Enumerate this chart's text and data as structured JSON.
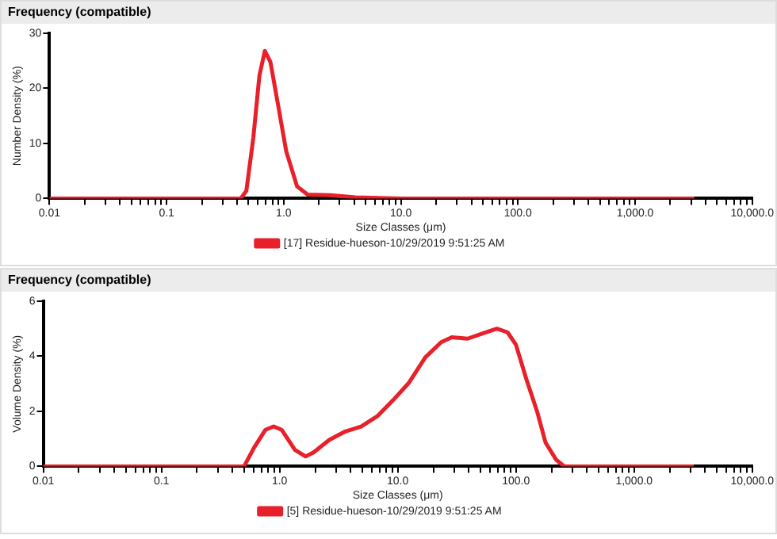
{
  "chart_data": [
    {
      "type": "line",
      "title": "Frequency (compatible)",
      "xlabel": "Size Classes (μm)",
      "ylabel": "Number Density (%)",
      "log": "x",
      "grid": false,
      "legend": "bottom",
      "marker": "none",
      "line_style": "solid",
      "xlim": [
        0.01,
        10000
      ],
      "ylim": [
        0,
        30
      ],
      "yticks": [
        0,
        10,
        20,
        30
      ],
      "xticks": [
        {
          "value": 0.01,
          "label": "0.01"
        },
        {
          "value": 0.02,
          "label": null
        },
        {
          "value": 0.03,
          "label": null
        },
        {
          "value": 0.04,
          "label": null
        },
        {
          "value": 0.05,
          "label": null
        },
        {
          "value": 0.06,
          "label": null
        },
        {
          "value": 0.07,
          "label": null
        },
        {
          "value": 0.08,
          "label": null
        },
        {
          "value": 0.09,
          "label": null
        },
        {
          "value": 0.1,
          "label": "0.1"
        },
        {
          "value": 0.2,
          "label": null
        },
        {
          "value": 0.3,
          "label": null
        },
        {
          "value": 0.4,
          "label": null
        },
        {
          "value": 0.5,
          "label": null
        },
        {
          "value": 0.6,
          "label": null
        },
        {
          "value": 0.7,
          "label": null
        },
        {
          "value": 0.8,
          "label": null
        },
        {
          "value": 0.9,
          "label": null
        },
        {
          "value": 1,
          "label": "1.0"
        },
        {
          "value": 2,
          "label": null
        },
        {
          "value": 3,
          "label": null
        },
        {
          "value": 4,
          "label": null
        },
        {
          "value": 5,
          "label": null
        },
        {
          "value": 6,
          "label": null
        },
        {
          "value": 7,
          "label": null
        },
        {
          "value": 8,
          "label": null
        },
        {
          "value": 9,
          "label": null
        },
        {
          "value": 10,
          "label": "10.0"
        },
        {
          "value": 20,
          "label": null
        },
        {
          "value": 30,
          "label": null
        },
        {
          "value": 40,
          "label": null
        },
        {
          "value": 50,
          "label": null
        },
        {
          "value": 60,
          "label": null
        },
        {
          "value": 70,
          "label": null
        },
        {
          "value": 80,
          "label": null
        },
        {
          "value": 90,
          "label": null
        },
        {
          "value": 100,
          "label": "100.0"
        },
        {
          "value": 200,
          "label": null
        },
        {
          "value": 300,
          "label": null
        },
        {
          "value": 400,
          "label": null
        },
        {
          "value": 500,
          "label": null
        },
        {
          "value": 600,
          "label": null
        },
        {
          "value": 700,
          "label": null
        },
        {
          "value": 800,
          "label": null
        },
        {
          "value": 900,
          "label": null
        },
        {
          "value": 1000,
          "label": "1,000.0"
        },
        {
          "value": 2000,
          "label": null
        },
        {
          "value": 3000,
          "label": null
        },
        {
          "value": 4000,
          "label": null
        },
        {
          "value": 5000,
          "label": null
        },
        {
          "value": 6000,
          "label": null
        },
        {
          "value": 7000,
          "label": null
        },
        {
          "value": 8000,
          "label": null
        },
        {
          "value": 9000,
          "label": null
        },
        {
          "value": 10000,
          "label": "10,000.0"
        }
      ],
      "x": [
        0.01,
        0.1,
        0.43,
        0.48,
        0.55,
        0.62,
        0.69,
        0.77,
        0.9,
        1.05,
        1.3,
        1.6,
        2.5,
        4.1,
        10,
        100,
        1000,
        3200
      ],
      "series": [
        {
          "name": "[17] Residue-hueson-10/29/2019 9:51:25 AM",
          "color": "#e8202a",
          "values": [
            0,
            0,
            0,
            1.4,
            11,
            22.3,
            26.8,
            24.8,
            16.7,
            8.6,
            2.2,
            0.7,
            0.6,
            0.2,
            0,
            0,
            0,
            0
          ]
        }
      ]
    },
    {
      "type": "line",
      "title": "Frequency (compatible)",
      "xlabel": "Size Classes (μm)",
      "ylabel": "Volume Density (%)",
      "log": "x",
      "grid": false,
      "legend": "bottom",
      "marker": "none",
      "line_style": "solid",
      "xlim": [
        0.01,
        10000
      ],
      "ylim": [
        0,
        6
      ],
      "yticks": [
        0,
        2,
        4,
        6
      ],
      "xticks": [
        {
          "value": 0.01,
          "label": "0.01"
        },
        {
          "value": 0.02,
          "label": null
        },
        {
          "value": 0.03,
          "label": null
        },
        {
          "value": 0.04,
          "label": null
        },
        {
          "value": 0.05,
          "label": null
        },
        {
          "value": 0.06,
          "label": null
        },
        {
          "value": 0.07,
          "label": null
        },
        {
          "value": 0.08,
          "label": null
        },
        {
          "value": 0.09,
          "label": null
        },
        {
          "value": 0.1,
          "label": "0.1"
        },
        {
          "value": 0.2,
          "label": null
        },
        {
          "value": 0.3,
          "label": null
        },
        {
          "value": 0.4,
          "label": null
        },
        {
          "value": 0.5,
          "label": null
        },
        {
          "value": 0.6,
          "label": null
        },
        {
          "value": 0.7,
          "label": null
        },
        {
          "value": 0.8,
          "label": null
        },
        {
          "value": 0.9,
          "label": null
        },
        {
          "value": 1,
          "label": "1.0"
        },
        {
          "value": 2,
          "label": null
        },
        {
          "value": 3,
          "label": null
        },
        {
          "value": 4,
          "label": null
        },
        {
          "value": 5,
          "label": null
        },
        {
          "value": 6,
          "label": null
        },
        {
          "value": 7,
          "label": null
        },
        {
          "value": 8,
          "label": null
        },
        {
          "value": 9,
          "label": null
        },
        {
          "value": 10,
          "label": "10.0"
        },
        {
          "value": 20,
          "label": null
        },
        {
          "value": 30,
          "label": null
        },
        {
          "value": 40,
          "label": null
        },
        {
          "value": 50,
          "label": null
        },
        {
          "value": 60,
          "label": null
        },
        {
          "value": 70,
          "label": null
        },
        {
          "value": 80,
          "label": null
        },
        {
          "value": 90,
          "label": null
        },
        {
          "value": 100,
          "label": "100.0"
        },
        {
          "value": 200,
          "label": null
        },
        {
          "value": 300,
          "label": null
        },
        {
          "value": 400,
          "label": null
        },
        {
          "value": 500,
          "label": null
        },
        {
          "value": 600,
          "label": null
        },
        {
          "value": 700,
          "label": null
        },
        {
          "value": 800,
          "label": null
        },
        {
          "value": 900,
          "label": null
        },
        {
          "value": 1000,
          "label": "1,000.0"
        },
        {
          "value": 2000,
          "label": null
        },
        {
          "value": 3000,
          "label": null
        },
        {
          "value": 4000,
          "label": null
        },
        {
          "value": 5000,
          "label": null
        },
        {
          "value": 6000,
          "label": null
        },
        {
          "value": 7000,
          "label": null
        },
        {
          "value": 8000,
          "label": null
        },
        {
          "value": 9000,
          "label": null
        },
        {
          "value": 10000,
          "label": "10,000.0"
        }
      ],
      "x": [
        0.01,
        0.1,
        0.5,
        0.61,
        0.76,
        0.89,
        1.04,
        1.35,
        1.66,
        1.94,
        2.63,
        3.6,
        4.9,
        6.7,
        9.2,
        12.5,
        17.1,
        23.3,
        28.7,
        39,
        53,
        69,
        85,
        100,
        123,
        152,
        178,
        219,
        257,
        1000,
        3200
      ],
      "series": [
        {
          "name": "[5] Residue-hueson-10/29/2019 9:51:25 AM",
          "color": "#e8202a",
          "values": [
            0,
            0,
            0,
            0.69,
            1.33,
            1.45,
            1.33,
            0.6,
            0.36,
            0.51,
            0.96,
            1.27,
            1.45,
            1.82,
            2.42,
            3.05,
            3.96,
            4.51,
            4.69,
            4.64,
            4.84,
            5.0,
            4.87,
            4.42,
            3.15,
            1.96,
            0.87,
            0.24,
            0,
            0,
            0
          ]
        }
      ]
    }
  ]
}
